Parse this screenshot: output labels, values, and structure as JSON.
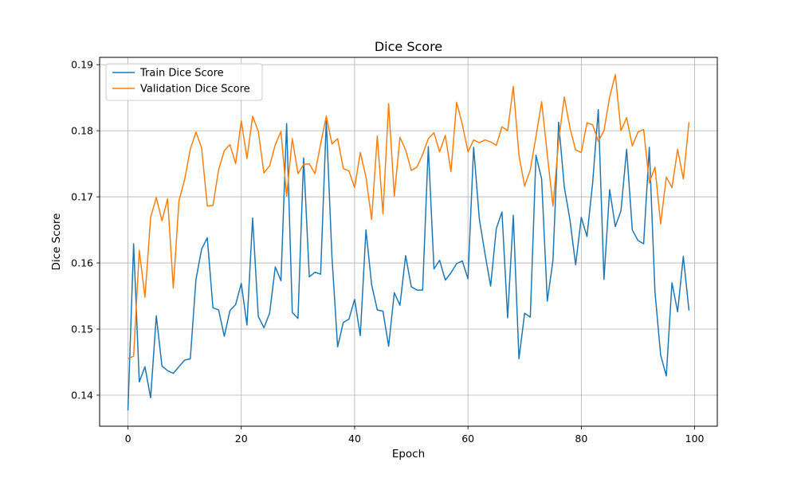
{
  "chart_data": {
    "type": "line",
    "title": "Dice Score",
    "xlabel": "Epoch",
    "ylabel": "Dice Score",
    "xlim": [
      -5,
      104
    ],
    "ylim": [
      0.1353,
      0.1911
    ],
    "xticks": [
      0,
      20,
      40,
      60,
      80,
      100
    ],
    "yticks": [
      0.14,
      0.15,
      0.16,
      0.17,
      0.18,
      0.19
    ],
    "grid": true,
    "legend_position": "top-left",
    "series": [
      {
        "name": "Train Dice Score",
        "color": "#1f77b4",
        "x": [
          0,
          1,
          2,
          3,
          4,
          5,
          6,
          7,
          8,
          9,
          10,
          11,
          12,
          13,
          14,
          15,
          16,
          17,
          18,
          19,
          20,
          21,
          22,
          23,
          24,
          25,
          26,
          27,
          28,
          29,
          30,
          31,
          32,
          33,
          34,
          35,
          36,
          37,
          38,
          39,
          40,
          41,
          42,
          43,
          44,
          45,
          46,
          47,
          48,
          49,
          50,
          51,
          52,
          53,
          54,
          55,
          56,
          57,
          58,
          59,
          60,
          61,
          62,
          63,
          64,
          65,
          66,
          67,
          68,
          69,
          70,
          71,
          72,
          73,
          74,
          75,
          76,
          77,
          78,
          79,
          80,
          81,
          82,
          83,
          84,
          85,
          86,
          87,
          88,
          89,
          90,
          91,
          92,
          93,
          94,
          95,
          96,
          97,
          98,
          99
        ],
        "values": [
          0.1377,
          0.1629,
          0.142,
          0.1443,
          0.1396,
          0.152,
          0.1444,
          0.1437,
          0.1433,
          0.1443,
          0.1453,
          0.1455,
          0.1575,
          0.1621,
          0.1638,
          0.1532,
          0.1529,
          0.1489,
          0.1528,
          0.1537,
          0.1569,
          0.1506,
          0.1668,
          0.1519,
          0.1502,
          0.1524,
          0.1594,
          0.1573,
          0.1811,
          0.1525,
          0.1516,
          0.1759,
          0.1579,
          0.1586,
          0.1583,
          0.1815,
          0.1609,
          0.1473,
          0.151,
          0.1515,
          0.1545,
          0.149,
          0.165,
          0.1567,
          0.1529,
          0.1527,
          0.1474,
          0.1555,
          0.1536,
          0.1611,
          0.1564,
          0.1559,
          0.1559,
          0.1776,
          0.1591,
          0.1604,
          0.1574,
          0.1585,
          0.1599,
          0.1603,
          0.1576,
          0.1775,
          0.1667,
          0.1614,
          0.1565,
          0.1652,
          0.1677,
          0.1517,
          0.1672,
          0.1455,
          0.1524,
          0.1518,
          0.1763,
          0.1727,
          0.1542,
          0.1604,
          0.1813,
          0.1715,
          0.1665,
          0.1597,
          0.1669,
          0.164,
          0.1721,
          0.1832,
          0.1575,
          0.1711,
          0.1655,
          0.1679,
          0.1772,
          0.165,
          0.1634,
          0.1629,
          0.1775,
          0.1556,
          0.1461,
          0.1429,
          0.157,
          0.1526,
          0.161,
          0.1528
        ]
      },
      {
        "name": "Validation Dice Score",
        "color": "#ff7f0e",
        "x": [
          0,
          1,
          2,
          3,
          4,
          5,
          6,
          7,
          8,
          9,
          10,
          11,
          12,
          13,
          14,
          15,
          16,
          17,
          18,
          19,
          20,
          21,
          22,
          23,
          24,
          25,
          26,
          27,
          28,
          29,
          30,
          31,
          32,
          33,
          34,
          35,
          36,
          37,
          38,
          39,
          40,
          41,
          42,
          43,
          44,
          45,
          46,
          47,
          48,
          49,
          50,
          51,
          52,
          53,
          54,
          55,
          56,
          57,
          58,
          59,
          60,
          61,
          62,
          63,
          64,
          65,
          66,
          67,
          68,
          69,
          70,
          71,
          72,
          73,
          74,
          75,
          76,
          77,
          78,
          79,
          80,
          81,
          82,
          83,
          84,
          85,
          86,
          87,
          88,
          89,
          90,
          91,
          92,
          93,
          94,
          95,
          96,
          97,
          98,
          99
        ],
        "values": [
          0.1455,
          0.1459,
          0.1619,
          0.1548,
          0.1669,
          0.1699,
          0.1664,
          0.1697,
          0.1562,
          0.1694,
          0.1726,
          0.1772,
          0.1798,
          0.1774,
          0.1686,
          0.1687,
          0.1741,
          0.177,
          0.1779,
          0.175,
          0.1815,
          0.1758,
          0.1822,
          0.1799,
          0.1736,
          0.1747,
          0.1779,
          0.1799,
          0.1701,
          0.1788,
          0.1735,
          0.1749,
          0.175,
          0.1735,
          0.178,
          0.1822,
          0.178,
          0.1788,
          0.1743,
          0.1739,
          0.1714,
          0.1767,
          0.173,
          0.1666,
          0.1792,
          0.1674,
          0.1841,
          0.1701,
          0.179,
          0.1771,
          0.174,
          0.1745,
          0.1764,
          0.1788,
          0.1797,
          0.1768,
          0.1793,
          0.1738,
          0.1843,
          0.181,
          0.1768,
          0.1786,
          0.1782,
          0.1786,
          0.1783,
          0.1778,
          0.1806,
          0.18,
          0.1867,
          0.1763,
          0.1716,
          0.1741,
          0.1791,
          0.1844,
          0.1764,
          0.1686,
          0.1785,
          0.1851,
          0.1804,
          0.1771,
          0.1767,
          0.1812,
          0.1809,
          0.1784,
          0.18,
          0.1851,
          0.1885,
          0.18,
          0.182,
          0.1777,
          0.1798,
          0.1802,
          0.1721,
          0.1745,
          0.1659,
          0.173,
          0.1714,
          0.1772,
          0.1727,
          0.1813
        ]
      }
    ]
  }
}
